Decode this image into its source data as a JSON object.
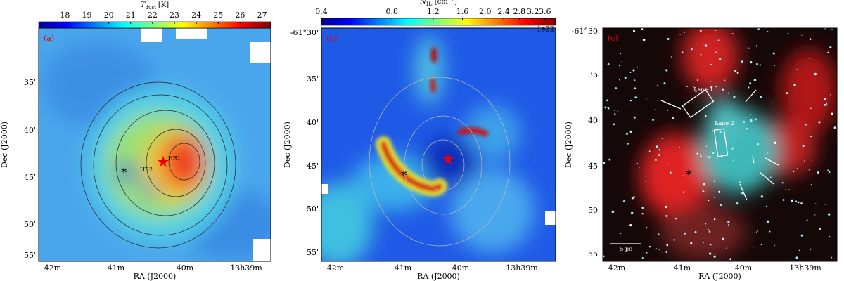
{
  "panels": [
    {
      "label": "(a)",
      "colorbar": {
        "symbol": "T",
        "subscript": "dust",
        "unit": "[K]",
        "clim": [
          16.8,
          27.4
        ],
        "scale": "linear",
        "ticks": [
          18,
          19,
          20,
          21,
          22,
          23,
          24,
          25,
          26,
          27
        ]
      },
      "yticks": [
        "35'",
        "40'",
        "45'",
        "50'",
        "55'"
      ],
      "xticks": [
        "42m",
        "41m",
        "40m",
        "13h39m"
      ],
      "xlabel": "RA (J2000)",
      "ylabel": "Dec (J2000)",
      "annotations": [
        "HR1",
        "HR2"
      ]
    },
    {
      "label": "(b)",
      "colorbar": {
        "symbol": "N",
        "subscript": "H₂",
        "unit": "[cm⁻²]",
        "clim": [
          0.4,
          4.0
        ],
        "scale": "log",
        "ticks": [
          0.4,
          0.8,
          1.2,
          1.6,
          {
            "value": 2,
            "label": "2.0"
          },
          2.4,
          2.8,
          3.2,
          3.6
        ],
        "offset": "1e22"
      },
      "yticks": [
        "-61°30'",
        "35'",
        "40'",
        "45'",
        "50'",
        "55'"
      ],
      "xticks": [
        "42m",
        "41m",
        "40m",
        "13h39m"
      ],
      "xlabel": "RA (J2000)",
      "ylabel": "Dec (J2000)",
      "annotations": []
    },
    {
      "label": "(c)",
      "yticks": [
        "-61°30'",
        "35'",
        "40'",
        "45'",
        "50'",
        "55'"
      ],
      "xticks": [
        "42m",
        "41m",
        "40m",
        "13h39m"
      ],
      "xlabel": "RA (J2000)",
      "ylabel": "Dec (J2000)",
      "annotations": [
        "Lane 1",
        "Lane 2",
        "5 pc"
      ]
    }
  ]
}
